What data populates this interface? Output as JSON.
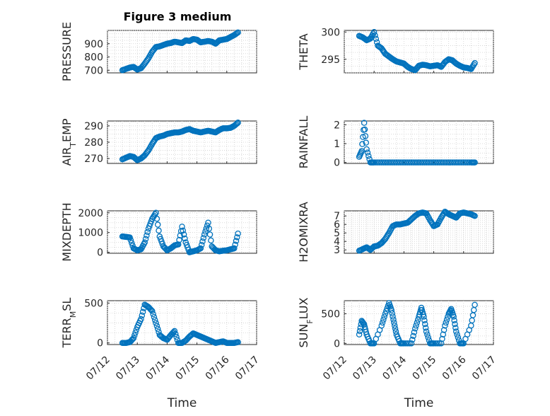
{
  "figure": {
    "title": "Figure 3 medium",
    "colors": {
      "marker": "#0072BD",
      "axes": "#262626",
      "background": "#ffffff"
    }
  },
  "chart_data": [
    {
      "type": "scatter",
      "name": "pressure",
      "title": "Figure 3 medium",
      "ylabel": "PRESSURE",
      "xlabel": "",
      "xlim": [
        "07/12",
        "07/17"
      ],
      "ylim": [
        680,
        1000
      ],
      "yticks": [
        700,
        800,
        900
      ],
      "xticks": [],
      "grid": true,
      "x": [
        "07/12 12:00",
        "07/12 15:00",
        "07/12 18:00",
        "07/12 21:00",
        "07/13 00:00",
        "07/13 03:00",
        "07/13 06:00",
        "07/13 09:00",
        "07/13 12:00",
        "07/13 15:00",
        "07/13 18:00",
        "07/13 21:00",
        "07/14 00:00",
        "07/14 03:00",
        "07/14 06:00",
        "07/14 09:00",
        "07/14 12:00",
        "07/14 15:00",
        "07/14 18:00",
        "07/14 21:00",
        "07/15 00:00",
        "07/15 03:00",
        "07/15 06:00",
        "07/15 09:00",
        "07/15 12:00",
        "07/15 15:00",
        "07/15 18:00",
        "07/15 21:00",
        "07/16 00:00",
        "07/16 03:00",
        "07/16 06:00",
        "07/16 09:00"
      ],
      "y": [
        700,
        710,
        720,
        725,
        705,
        715,
        750,
        790,
        840,
        875,
        880,
        890,
        900,
        905,
        915,
        910,
        905,
        925,
        920,
        935,
        930,
        910,
        915,
        920,
        915,
        900,
        925,
        930,
        935,
        950,
        965,
        985
      ]
    },
    {
      "type": "scatter",
      "name": "theta",
      "ylabel": "THETA",
      "xlabel": "",
      "xlim": [
        "07/12",
        "07/17"
      ],
      "ylim": [
        292.5,
        300.3
      ],
      "yticks": [
        295,
        300
      ],
      "xticks": [],
      "grid": true,
      "x": [
        "07/12 12:00",
        "07/12 15:00",
        "07/12 18:00",
        "07/12 21:00",
        "07/13 00:00",
        "07/13 03:00",
        "07/13 06:00",
        "07/13 09:00",
        "07/13 12:00",
        "07/13 15:00",
        "07/13 18:00",
        "07/13 21:00",
        "07/14 00:00",
        "07/14 03:00",
        "07/14 06:00",
        "07/14 09:00",
        "07/14 12:00",
        "07/14 15:00",
        "07/14 18:00",
        "07/14 21:00",
        "07/15 00:00",
        "07/15 03:00",
        "07/15 06:00",
        "07/15 09:00",
        "07/15 12:00",
        "07/15 15:00",
        "07/15 18:00",
        "07/15 21:00",
        "07/16 00:00",
        "07/16 03:00",
        "07/16 06:00",
        "07/16 09:00"
      ],
      "y": [
        299.3,
        299.0,
        298.5,
        298.8,
        300.0,
        297.5,
        297.0,
        296.0,
        295.5,
        295.0,
        294.6,
        294.4,
        294.2,
        293.6,
        293.2,
        293.0,
        293.8,
        294.0,
        293.9,
        293.7,
        293.8,
        293.9,
        293.6,
        294.5,
        295.0,
        294.8,
        294.2,
        293.8,
        293.5,
        293.4,
        293.2,
        294.3
      ]
    },
    {
      "type": "scatter",
      "name": "air_temp",
      "ylabel": "AIR_TEMP",
      "xlabel": "",
      "xlim": [
        "07/12",
        "07/17"
      ],
      "ylim": [
        267,
        293
      ],
      "yticks": [
        270,
        280,
        290
      ],
      "xticks": [],
      "grid": true,
      "x": [
        "07/12 12:00",
        "07/12 15:00",
        "07/12 18:00",
        "07/12 21:00",
        "07/13 00:00",
        "07/13 03:00",
        "07/13 06:00",
        "07/13 09:00",
        "07/13 12:00",
        "07/13 15:00",
        "07/13 18:00",
        "07/13 21:00",
        "07/14 00:00",
        "07/14 03:00",
        "07/14 06:00",
        "07/14 09:00",
        "07/14 12:00",
        "07/14 15:00",
        "07/14 18:00",
        "07/14 21:00",
        "07/15 00:00",
        "07/15 03:00",
        "07/15 06:00",
        "07/15 09:00",
        "07/15 12:00",
        "07/15 15:00",
        "07/15 18:00",
        "07/15 21:00",
        "07/16 00:00",
        "07/16 03:00",
        "07/16 06:00",
        "07/16 09:00"
      ],
      "y": [
        269.5,
        270.5,
        271.5,
        271.0,
        269.0,
        270.0,
        272.0,
        275.0,
        279.0,
        282.5,
        283.5,
        284.0,
        285.0,
        285.5,
        286.0,
        286.0,
        286.5,
        287.5,
        288.0,
        287.0,
        286.5,
        286.0,
        286.5,
        287.0,
        286.5,
        286.0,
        287.5,
        288.5,
        288.5,
        288.8,
        290.0,
        292.0
      ]
    },
    {
      "type": "scatter",
      "name": "rainfall",
      "ylabel": "RAINFALL",
      "xlabel": "",
      "xlim": [
        "07/12",
        "07/17"
      ],
      "ylim": [
        -0.05,
        2.2
      ],
      "yticks": [
        0,
        1,
        2
      ],
      "xticks": [],
      "grid": true,
      "x": [
        "07/12 12:00",
        "07/12 14:00",
        "07/12 16:00",
        "07/12 18:00",
        "07/12 21:00",
        "07/13 00:00",
        "07/13 06:00",
        "07/13 12:00",
        "07/13 18:00",
        "07/14 00:00",
        "07/14 06:00",
        "07/14 12:00",
        "07/14 18:00",
        "07/15 00:00",
        "07/15 06:00",
        "07/15 12:00",
        "07/15 18:00",
        "07/16 00:00",
        "07/16 06:00",
        "07/16 09:00"
      ],
      "y": [
        0.3,
        0.6,
        2.1,
        0.7,
        0,
        0,
        0,
        0,
        0,
        0,
        0,
        0,
        0,
        0,
        0,
        0,
        0,
        0,
        0,
        0
      ]
    },
    {
      "type": "scatter",
      "name": "mixdepth",
      "ylabel": "MIXDEPTH",
      "xlabel": "",
      "xlim": [
        "07/12",
        "07/17"
      ],
      "ylim": [
        -50,
        2100
      ],
      "yticks": [
        0,
        1000,
        2000
      ],
      "xticks": [],
      "grid": true,
      "x": [
        "07/12 12:00",
        "07/12 15:00",
        "07/12 18:00",
        "07/12 21:00",
        "07/13 00:00",
        "07/13 03:00",
        "07/13 06:00",
        "07/13 09:00",
        "07/13 12:00",
        "07/13 15:00",
        "07/13 18:00",
        "07/13 21:00",
        "07/14 00:00",
        "07/14 03:00",
        "07/14 06:00",
        "07/14 09:00",
        "07/14 12:00",
        "07/14 15:00",
        "07/14 18:00",
        "07/14 21:00",
        "07/15 00:00",
        "07/15 03:00",
        "07/15 06:00",
        "07/15 09:00",
        "07/15 12:00",
        "07/15 15:00",
        "07/15 18:00",
        "07/15 21:00",
        "07/16 00:00",
        "07/16 03:00",
        "07/16 06:00",
        "07/16 09:00"
      ],
      "y": [
        800,
        780,
        750,
        200,
        100,
        150,
        500,
        1200,
        1700,
        2000,
        800,
        300,
        100,
        200,
        350,
        400,
        1300,
        500,
        0,
        50,
        100,
        200,
        900,
        1500,
        300,
        100,
        50,
        80,
        100,
        150,
        200,
        950
      ]
    },
    {
      "type": "scatter",
      "name": "h2omixra",
      "ylabel": "H2OMIXRA",
      "xlabel": "",
      "xlim": [
        "07/12",
        "07/17"
      ],
      "ylim": [
        2.6,
        7.6
      ],
      "yticks": [
        3,
        4,
        5,
        6,
        7
      ],
      "xticks": [],
      "grid": true,
      "x": [
        "07/12 12:00",
        "07/12 15:00",
        "07/12 18:00",
        "07/12 21:00",
        "07/13 00:00",
        "07/13 03:00",
        "07/13 06:00",
        "07/13 09:00",
        "07/13 12:00",
        "07/13 15:00",
        "07/13 18:00",
        "07/13 21:00",
        "07/14 00:00",
        "07/14 03:00",
        "07/14 06:00",
        "07/14 09:00",
        "07/14 12:00",
        "07/14 15:00",
        "07/14 18:00",
        "07/14 21:00",
        "07/15 00:00",
        "07/15 03:00",
        "07/15 06:00",
        "07/15 09:00",
        "07/15 12:00",
        "07/15 15:00",
        "07/15 18:00",
        "07/15 21:00",
        "07/16 00:00",
        "07/16 03:00",
        "07/16 06:00",
        "07/16 09:00"
      ],
      "y": [
        2.9,
        3.1,
        3.3,
        3.0,
        3.4,
        3.5,
        3.8,
        4.3,
        5.0,
        5.8,
        6.0,
        6.0,
        6.1,
        6.2,
        6.6,
        7.0,
        7.3,
        7.4,
        7.3,
        6.5,
        5.8,
        6.0,
        6.8,
        7.5,
        7.2,
        7.0,
        6.8,
        7.3,
        7.4,
        7.3,
        7.2,
        7.0
      ]
    },
    {
      "type": "scatter",
      "name": "terr_msl",
      "ylabel": "TERR_MSL",
      "xlabel": "Time",
      "xlim": [
        "07/12",
        "07/17"
      ],
      "ylim": [
        -20,
        530
      ],
      "yticks": [
        0,
        500
      ],
      "xticks": [
        "07/12",
        "07/13",
        "07/14",
        "07/15",
        "07/16",
        "07/17"
      ],
      "grid": true,
      "x": [
        "07/12 12:00",
        "07/12 15:00",
        "07/12 18:00",
        "07/12 21:00",
        "07/13 00:00",
        "07/13 03:00",
        "07/13 06:00",
        "07/13 09:00",
        "07/13 12:00",
        "07/13 15:00",
        "07/13 18:00",
        "07/13 21:00",
        "07/14 00:00",
        "07/14 03:00",
        "07/14 06:00",
        "07/14 09:00",
        "07/14 12:00",
        "07/14 15:00",
        "07/14 18:00",
        "07/14 21:00",
        "07/15 00:00",
        "07/15 03:00",
        "07/15 06:00",
        "07/15 09:00",
        "07/15 12:00",
        "07/15 15:00",
        "07/15 18:00",
        "07/15 21:00",
        "07/16 00:00",
        "07/16 03:00",
        "07/16 06:00",
        "07/16 09:00"
      ],
      "y": [
        0,
        0,
        10,
        60,
        200,
        300,
        480,
        450,
        400,
        250,
        100,
        60,
        40,
        100,
        150,
        0,
        0,
        30,
        80,
        120,
        100,
        80,
        60,
        40,
        20,
        0,
        10,
        20,
        0,
        0,
        0,
        10
      ]
    },
    {
      "type": "scatter",
      "name": "sun_flux",
      "ylabel": "SUN_FLUX",
      "xlabel": "Time",
      "xlim": [
        "07/12",
        "07/17"
      ],
      "ylim": [
        -20,
        720
      ],
      "yticks": [
        0,
        500
      ],
      "xticks": [
        "07/12",
        "07/13",
        "07/14",
        "07/15",
        "07/16",
        "07/17"
      ],
      "grid": true,
      "x": [
        "07/12 12:00",
        "07/12 14:00",
        "07/12 16:00",
        "07/12 18:00",
        "07/12 21:00",
        "07/13 00:00",
        "07/13 06:00",
        "07/13 09:00",
        "07/13 12:00",
        "07/13 14:00",
        "07/13 16:00",
        "07/13 18:00",
        "07/13 21:00",
        "07/14 00:00",
        "07/14 06:00",
        "07/14 09:00",
        "07/14 12:00",
        "07/14 14:00",
        "07/14 16:00",
        "07/14 18:00",
        "07/14 21:00",
        "07/15 00:00",
        "07/15 06:00",
        "07/15 09:00",
        "07/15 12:00",
        "07/15 14:00",
        "07/15 16:00",
        "07/15 18:00",
        "07/15 21:00",
        "07/16 00:00",
        "07/16 06:00",
        "07/16 09:00"
      ],
      "y": [
        150,
        380,
        320,
        150,
        0,
        0,
        300,
        500,
        680,
        560,
        350,
        150,
        0,
        0,
        0,
        250,
        450,
        600,
        450,
        200,
        0,
        0,
        0,
        300,
        500,
        580,
        450,
        200,
        0,
        0,
        300,
        650
      ]
    }
  ]
}
